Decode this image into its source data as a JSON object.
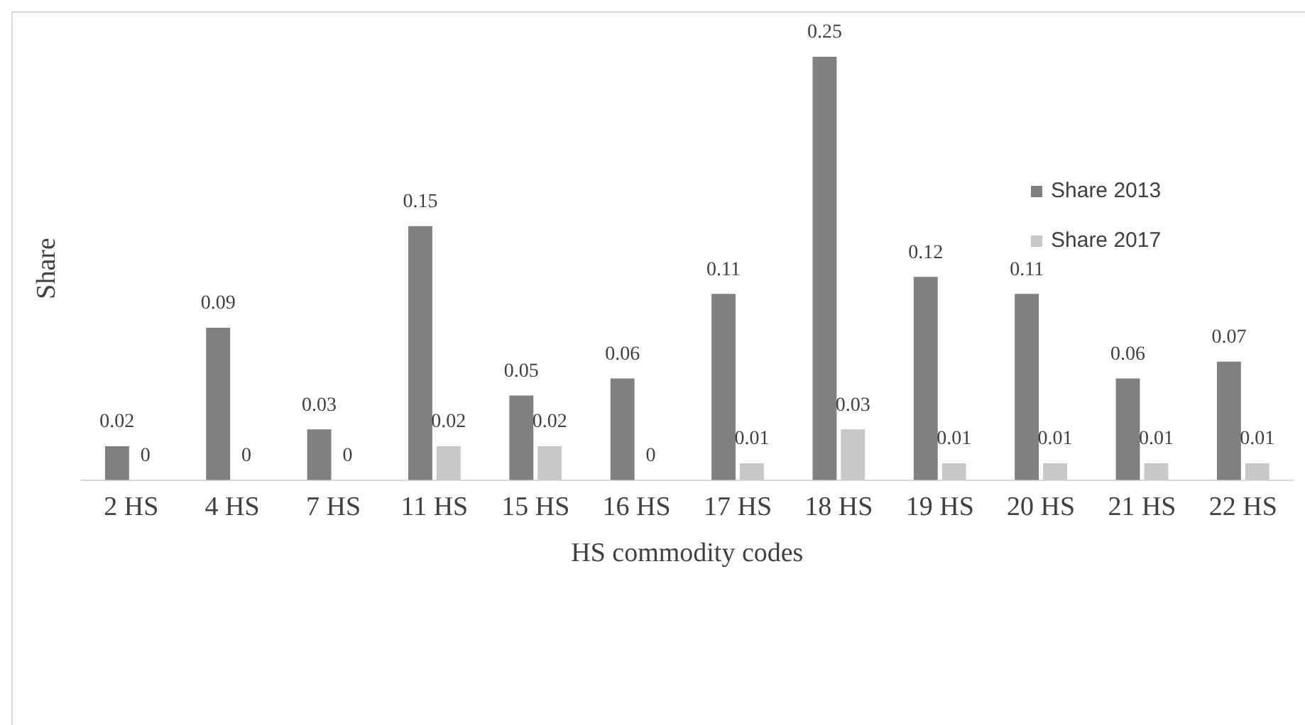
{
  "chart_data": {
    "type": "bar",
    "xlabel": "HS commodity codes",
    "ylabel": "Share",
    "categories": [
      "2 HS",
      "4 HS",
      "7 HS",
      "11 HS",
      "15 HS",
      "16 HS",
      "17 HS",
      "18 HS",
      "19 HS",
      "20 HS",
      "21 HS",
      "22 HS"
    ],
    "series": [
      {
        "name": "Share 2013",
        "color": "#808080",
        "values": [
          0.02,
          0.09,
          0.03,
          0.15,
          0.05,
          0.06,
          0.11,
          0.25,
          0.12,
          0.11,
          0.06,
          0.07
        ]
      },
      {
        "name": "Share 2017",
        "color": "#c8c8c8",
        "values": [
          0,
          0,
          0,
          0.02,
          0.02,
          0,
          0.01,
          0.03,
          0.01,
          0.01,
          0.01,
          0.01
        ]
      }
    ],
    "data_labels": true,
    "legend": "right",
    "grid": false
  }
}
